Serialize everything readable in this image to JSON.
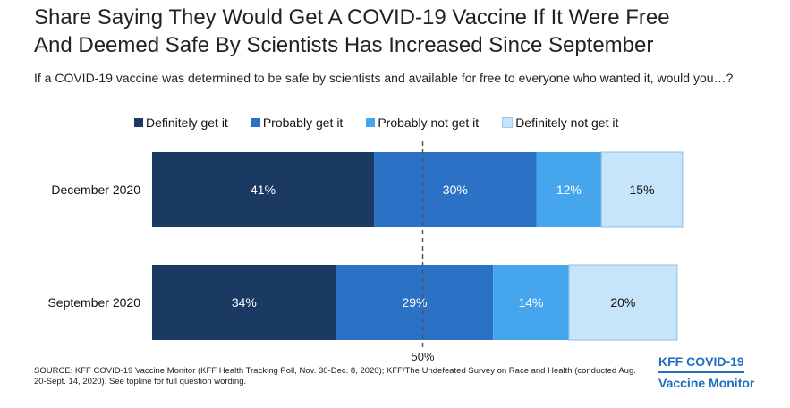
{
  "title_line1": "Share Saying They Would Get A COVID-19 Vaccine If It Were Free",
  "title_line2": "And Deemed Safe By Scientists Has Increased Since September",
  "subtitle": "If a COVID-19 vaccine was determined to be safe by scientists and available for free to everyone who wanted it, would you…?",
  "source": "SOURCE: KFF COVID-19 Vaccine Monitor (KFF Health Tracking Poll, Nov. 30-Dec. 8, 2020); KFF/The Undefeated Survey on Race and Health (conducted Aug. 20-Sept. 14, 2020). See topline for full question wording.",
  "brand": {
    "line1": "KFF COVID-19",
    "line2": "Vaccine Monitor"
  },
  "colors": {
    "definitely_get": "#1b3a63",
    "probably_get": "#2b72c6",
    "probably_not": "#45a6ee",
    "definitely_not": "#c6e4fa"
  },
  "chart_data": {
    "type": "bar",
    "orientation": "horizontal",
    "stacked": true,
    "categories": [
      "December 2020",
      "September 2020"
    ],
    "series": [
      {
        "name": "Definitely get it",
        "values": [
          41,
          34
        ],
        "labels": [
          "41%",
          "34%"
        ],
        "color": "#1b3a63",
        "label_color": "#ffffff"
      },
      {
        "name": "Probably get it",
        "values": [
          30,
          29
        ],
        "labels": [
          "30%",
          "29%"
        ],
        "color": "#2b72c6",
        "label_color": "#ffffff"
      },
      {
        "name": "Probably not get it",
        "values": [
          12,
          14
        ],
        "labels": [
          "12%",
          "14%"
        ],
        "color": "#45a6ee",
        "label_color": "#ffffff"
      },
      {
        "name": "Definitely not get it",
        "values": [
          15,
          20
        ],
        "labels": [
          "15%",
          "20%"
        ],
        "color": "#c6e4fa",
        "label_color": "#111111"
      }
    ],
    "reference_line": {
      "value": 50,
      "label": "50%"
    },
    "legend": "top"
  }
}
